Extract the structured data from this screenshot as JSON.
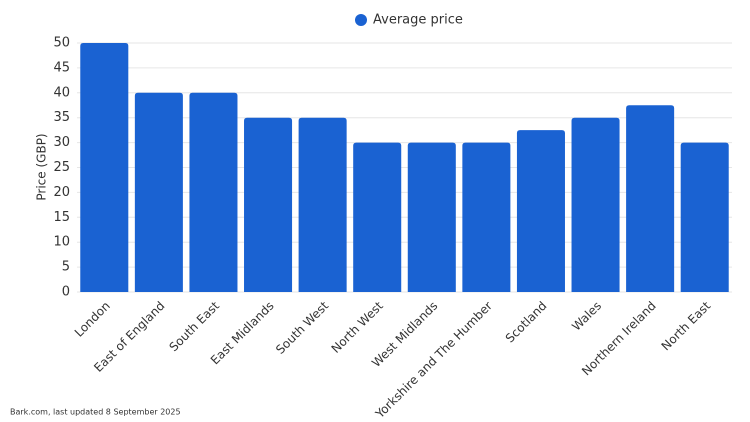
{
  "chart_data": {
    "type": "bar",
    "y_label": "Price (GBP)",
    "categories": [
      "London",
      "East of England",
      "South East",
      "East Midlands",
      "South West",
      "North West",
      "West Midlands",
      "Yorkshire and The Humber",
      "Scotland",
      "Wales",
      "Northern Ireland",
      "North East"
    ],
    "series": [
      {
        "name": "Average price",
        "color": "#1a62d2",
        "values": [
          50,
          40,
          40,
          35,
          35,
          30,
          30,
          30,
          32.5,
          35,
          37.5,
          30
        ]
      }
    ],
    "ylim": [
      0,
      50
    ],
    "yticks": [
      0,
      5,
      10,
      15,
      20,
      25,
      30,
      35,
      40,
      45,
      50
    ],
    "grid": true,
    "source": "Bark.com, last updated 8 September 2025"
  }
}
